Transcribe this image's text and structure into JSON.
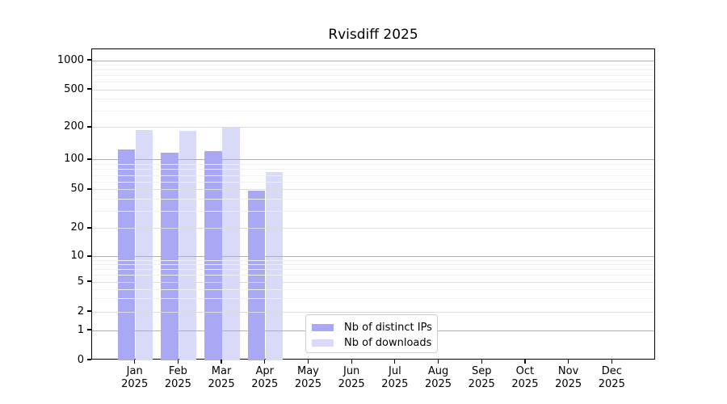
{
  "chart_data": {
    "type": "bar",
    "title": "Rvisdiff 2025",
    "months": [
      "Jan",
      "Feb",
      "Mar",
      "Apr",
      "May",
      "Jun",
      "Jul",
      "Aug",
      "Sep",
      "Oct",
      "Nov",
      "Dec"
    ],
    "year_label": "2025",
    "series": [
      {
        "name": "Nb of distinct IPs",
        "color": "#a9a9f3",
        "values": [
          125,
          117,
          121,
          49,
          null,
          null,
          null,
          null,
          null,
          null,
          null,
          null
        ]
      },
      {
        "name": "Nb of downloads",
        "color": "#d9d9f8",
        "values": [
          190,
          188,
          202,
          76,
          null,
          null,
          null,
          null,
          null,
          null,
          null,
          null
        ]
      }
    ],
    "y_axis": {
      "ticks": [
        0,
        1,
        2,
        5,
        10,
        20,
        50,
        100,
        200,
        500,
        1000
      ],
      "minor_gridlines": [
        3,
        4,
        6,
        7,
        8,
        9,
        30,
        40,
        60,
        70,
        80,
        90,
        300,
        400,
        600,
        700,
        800,
        900
      ],
      "scale": "log-like with linear 0-1 segment",
      "scale_anchors": [
        [
          0,
          0
        ],
        [
          1,
          0.0961
        ],
        [
          2,
          0.1558
        ],
        [
          5,
          0.2519
        ],
        [
          10,
          0.3325
        ],
        [
          20,
          0.4234
        ],
        [
          50,
          0.5481
        ],
        [
          100,
          0.6442
        ],
        [
          200,
          0.7481
        ],
        [
          500,
          0.8701
        ],
        [
          1000,
          0.9636
        ]
      ]
    },
    "x_axis": {
      "tick_count": 12
    },
    "legend": {
      "position": "lower center-left",
      "entries": [
        "Nb of distinct IPs",
        "Nb of downloads"
      ]
    },
    "grid": true
  },
  "colors": {
    "distinct_ips_bar": "#a9a9f3",
    "downloads_bar": "#d9d9f8",
    "grid_major": "#b0b0b0",
    "grid_labeled": "#dcdcdc",
    "grid_minor": "#efefef",
    "axis_spine": "#000000",
    "legend_border": "#cccccc",
    "background": "#ffffff"
  }
}
